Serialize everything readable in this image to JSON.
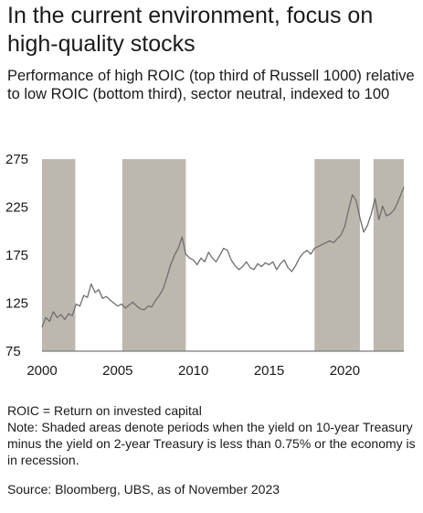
{
  "title": "In the current environment, focus on high-quality stocks",
  "subtitle": "Performance of high ROIC (top third of Russell 1000) relative to low ROIC (bottom third), sector neutral, indexed to 100",
  "notes": {
    "definition": "ROIC = Return on invested capital",
    "shading": "Note: Shaded areas denote periods when the yield on 10-year Treasury minus the yield on 2-year Treasury is less than 0.75% or the economy is in recession.",
    "source": "Source: Bloomberg, UBS, as of November 2023"
  },
  "colors": {
    "shade": "#bdb8ae",
    "line": "#6e6e6e",
    "axis": "#7a7a7a",
    "text": "#1a1a1a"
  },
  "chart_data": {
    "type": "line",
    "xlim": [
      2000,
      2023.9
    ],
    "ylim": [
      75,
      275
    ],
    "x_ticks": [
      2000,
      2005,
      2010,
      2015,
      2020
    ],
    "y_ticks": [
      75,
      125,
      175,
      225,
      275
    ],
    "grid": false,
    "shaded_periods": [
      [
        2000,
        2002.2
      ],
      [
        2005.3,
        2009.5
      ],
      [
        2018,
        2021
      ],
      [
        2021.9,
        2023.9
      ]
    ],
    "series": [
      {
        "x": [
          2000.0,
          2000.25,
          2000.5,
          2000.75,
          2001.0,
          2001.25,
          2001.5,
          2001.75,
          2002.0,
          2002.25,
          2002.5,
          2002.75,
          2003.0,
          2003.25,
          2003.5,
          2003.75,
          2004.0,
          2004.25,
          2004.5,
          2004.75,
          2005.0,
          2005.25,
          2005.5,
          2005.75,
          2006.0,
          2006.25,
          2006.5,
          2006.75,
          2007.0,
          2007.25,
          2007.5,
          2007.75,
          2008.0,
          2008.25,
          2008.5,
          2008.75,
          2009.0,
          2009.25,
          2009.5,
          2009.75,
          2010.0,
          2010.25,
          2010.5,
          2010.75,
          2011.0,
          2011.25,
          2011.5,
          2011.75,
          2012.0,
          2012.25,
          2012.5,
          2012.75,
          2013.0,
          2013.25,
          2013.5,
          2013.75,
          2014.0,
          2014.25,
          2014.5,
          2014.75,
          2015.0,
          2015.25,
          2015.5,
          2015.75,
          2016.0,
          2016.25,
          2016.5,
          2016.75,
          2017.0,
          2017.25,
          2017.5,
          2017.75,
          2018.0,
          2018.25,
          2018.5,
          2018.75,
          2019.0,
          2019.25,
          2019.5,
          2019.75,
          2020.0,
          2020.25,
          2020.5,
          2020.75,
          2021.0,
          2021.25,
          2021.5,
          2021.75,
          2022.0,
          2022.25,
          2022.5,
          2022.75,
          2023.0,
          2023.25,
          2023.5,
          2023.75,
          2023.9
        ],
        "values": [
          100,
          110,
          106,
          116,
          110,
          113,
          108,
          114,
          112,
          124,
          122,
          133,
          131,
          145,
          136,
          139,
          130,
          132,
          128,
          125,
          122,
          124,
          120,
          123,
          126,
          122,
          119,
          118,
          122,
          121,
          128,
          133,
          140,
          152,
          165,
          175,
          182,
          194,
          176,
          172,
          170,
          165,
          172,
          168,
          178,
          172,
          168,
          175,
          182,
          180,
          170,
          164,
          160,
          163,
          168,
          162,
          160,
          166,
          163,
          167,
          165,
          168,
          160,
          166,
          170,
          162,
          158,
          164,
          172,
          177,
          180,
          176,
          182,
          184,
          186,
          188,
          190,
          188,
          192,
          196,
          205,
          222,
          238,
          232,
          214,
          199,
          206,
          218,
          234,
          212,
          226,
          216,
          218,
          222,
          230,
          240,
          246
        ]
      }
    ]
  }
}
